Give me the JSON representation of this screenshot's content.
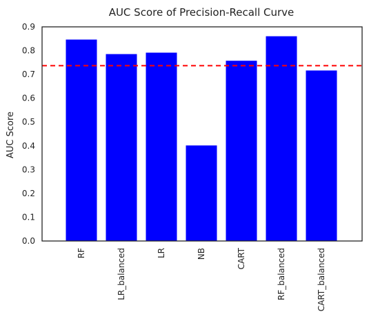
{
  "chart_data": {
    "type": "bar",
    "title": "AUC Score of Precision-Recall Curve",
    "xlabel": "",
    "ylabel": "AUC Score",
    "categories": [
      "RF",
      "LR_balanced",
      "LR",
      "NB",
      "CART",
      "RF_balanced",
      "CART_balanced"
    ],
    "values": [
      0.848,
      0.787,
      0.793,
      0.403,
      0.759,
      0.862,
      0.718
    ],
    "ylim": [
      0,
      0.9
    ],
    "yticks": [
      "0.0",
      "0.1",
      "0.2",
      "0.3",
      "0.4",
      "0.5",
      "0.6",
      "0.7",
      "0.8",
      "0.9"
    ],
    "reference_line": {
      "value": 0.737,
      "style": "dashed"
    },
    "grid": false,
    "colors": {
      "bar": "#0000ff",
      "reference": "#ff0000",
      "axes": "#222222"
    }
  }
}
